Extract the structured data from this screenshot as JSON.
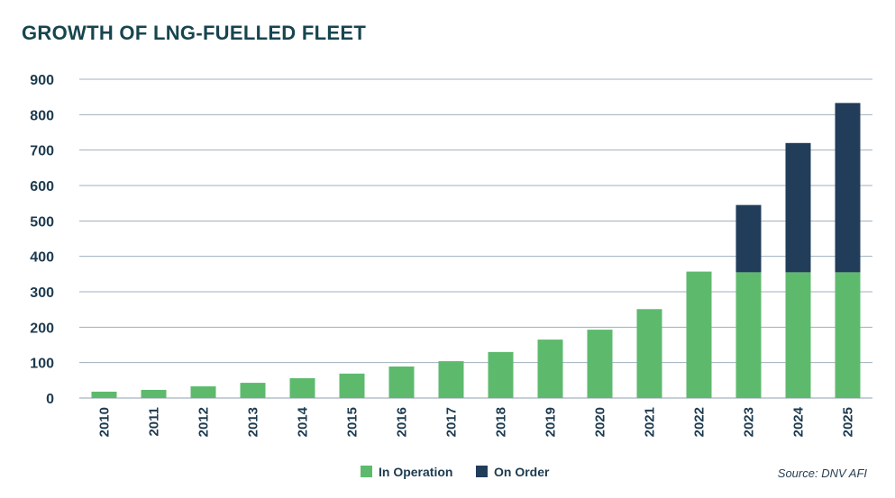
{
  "chart_data": {
    "type": "bar",
    "stacked": true,
    "title": "GROWTH OF LNG-FUELLED FLEET",
    "xlabel": "",
    "ylabel": "",
    "ylim": [
      0,
      900
    ],
    "yticks": [
      0,
      100,
      200,
      300,
      400,
      500,
      600,
      700,
      800,
      900
    ],
    "grid": true,
    "legend_position": "bottom-right",
    "categories": [
      "2010",
      "2011",
      "2012",
      "2013",
      "2014",
      "2015",
      "2016",
      "2017",
      "2018",
      "2019",
      "2020",
      "2021",
      "2022",
      "2023",
      "2024",
      "2025"
    ],
    "series": [
      {
        "name": "In Operation",
        "color": "#5dba6d",
        "values": [
          18,
          23,
          33,
          43,
          56,
          69,
          89,
          104,
          130,
          165,
          193,
          251,
          357,
          355,
          355,
          355
        ]
      },
      {
        "name": "On Order",
        "color": "#213d5a",
        "values": [
          0,
          0,
          0,
          0,
          0,
          0,
          0,
          0,
          0,
          0,
          0,
          0,
          0,
          190,
          365,
          478
        ]
      }
    ],
    "source": "Source: DNV AFI"
  }
}
